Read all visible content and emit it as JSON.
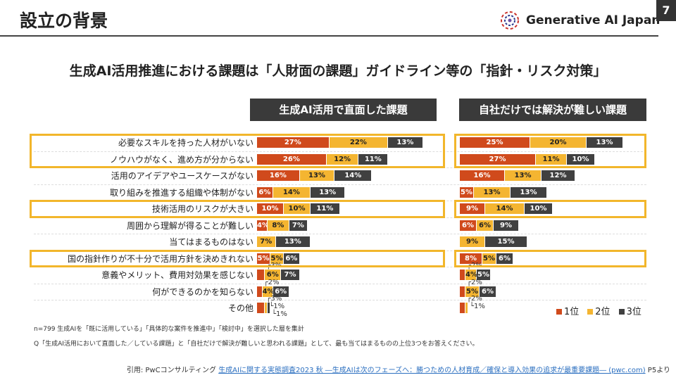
{
  "header": {
    "title": "設立の背景",
    "logo_text": "Generative AI Japan",
    "page_number": "7"
  },
  "subtitle": "生成AI活用推進における課題は「人財面の課題」ガイドライン等の「指針・リスク対策」",
  "chart_data": [
    {
      "type": "bar",
      "stacked": true,
      "orientation": "horizontal",
      "title": "生成AI活用で直面した課題",
      "categories": [
        "必要なスキルを持った人材がいない",
        "ノウハウがなく、進め方が分からない",
        "活用のアイデアやユースケースがない",
        "取り組みを推進する組織や体制がない",
        "技術活用のリスクが大きい",
        "周囲から理解が得ることが難しい",
        "当てはまるものはない",
        "国の指針作りが不十分で活用方針を決めきれない",
        "意義やメリット、費用対効果を感じない",
        "何ができるのかを知らない",
        "その他"
      ],
      "series": [
        {
          "name": "1位",
          "values": [
            27,
            26,
            16,
            6,
            10,
            4,
            0,
            5,
            3,
            2,
            3
          ]
        },
        {
          "name": "2位",
          "values": [
            22,
            12,
            13,
            14,
            10,
            8,
            7,
            5,
            6,
            4,
            1
          ]
        },
        {
          "name": "3位",
          "values": [
            13,
            11,
            14,
            13,
            11,
            7,
            13,
            6,
            7,
            6,
            1
          ]
        }
      ],
      "value_labels": [
        "27%",
        "22%",
        "13%"
      ]
    },
    {
      "type": "bar",
      "stacked": true,
      "orientation": "horizontal",
      "title": "自社だけでは解決が難しい課題",
      "categories": [
        "必要なスキルを持った人材がいない",
        "ノウハウがなく、進め方が分からない",
        "活用のアイデアやユースケースがない",
        "取り組みを推進する組織や体制がない",
        "技術活用のリスクが大きい",
        "周囲から理解が得ることが難しい",
        "当てはまるものはない",
        "国の指針作りが不十分で活用方針を決めきれない",
        "意義やメリット、費用対効果を感じない",
        "何ができるのかを知らない",
        "その他"
      ],
      "series": [
        {
          "name": "1位",
          "values": [
            25,
            27,
            16,
            5,
            9,
            6,
            0,
            8,
            2,
            2,
            2
          ]
        },
        {
          "name": "2位",
          "values": [
            20,
            11,
            13,
            13,
            14,
            6,
            9,
            5,
            4,
            5,
            1
          ]
        },
        {
          "name": "3位",
          "values": [
            13,
            10,
            12,
            13,
            10,
            9,
            15,
            6,
            5,
            6,
            0
          ]
        }
      ]
    }
  ],
  "highlighted_rows": [
    0,
    1,
    4,
    7
  ],
  "colors": {
    "1位": "#d04a1c",
    "2位": "#f4b531",
    "3位": "#404040",
    "highlight": "#f2b62b"
  },
  "legend": [
    "1位",
    "2位",
    "3位"
  ],
  "notes": {
    "n": "n=799 生成AIを「既に活用している」「具体的な案件を推進中」「検討中」を選択した層を集計",
    "q": "Q「生成AI活用において直面した／している課題」と「自社だけで解決が難しいと思われる課題」として、最も当てはまるものの上位3つをお答えください。"
  },
  "citation": {
    "prefix": "引用: PwCコンサルティング ",
    "link": "生成AIに関する実態調査2023 秋 ―生成AIは次のフェーズへ：勝つための人材育成／確保と導入効果の追求が最重要課題― (pwc.com)",
    "suffix": " P5より"
  }
}
